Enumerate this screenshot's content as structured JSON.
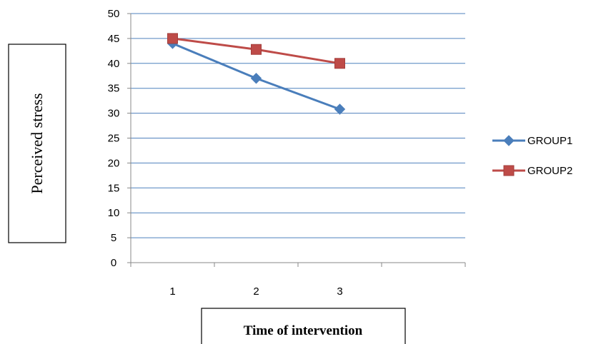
{
  "chart_data": {
    "type": "line",
    "title": "",
    "xlabel": "Time of intervention",
    "ylabel": "Perceived stress",
    "categories": [
      "1",
      "2",
      "3"
    ],
    "category_slots": 4,
    "ylim": [
      0,
      50
    ],
    "yticks": [
      0,
      5,
      10,
      15,
      20,
      25,
      30,
      35,
      40,
      45,
      50
    ],
    "grid": true,
    "legend_position": "right",
    "series": [
      {
        "name": "GROUP1",
        "values": [
          44,
          37,
          30.8
        ],
        "color": "#4a7ebb",
        "marker": "diamond"
      },
      {
        "name": "GROUP2",
        "values": [
          45,
          42.8,
          40
        ],
        "color": "#be4b48",
        "marker": "square"
      }
    ]
  }
}
